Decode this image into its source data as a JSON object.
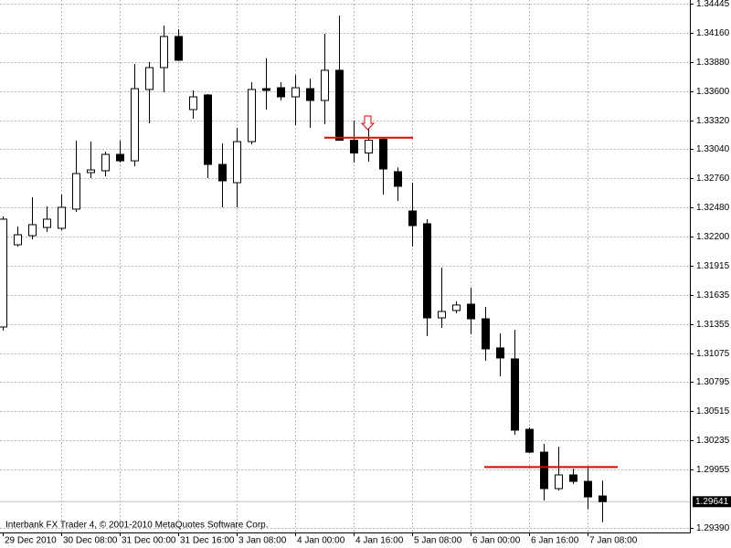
{
  "chart_data": {
    "type": "candlestick",
    "categories": [
      "29 Dec 2010",
      null,
      null,
      null,
      "30 Dec 08:00",
      null,
      null,
      null,
      "31 Dec 00:00",
      null,
      null,
      null,
      "31 Dec 16:00",
      null,
      null,
      null,
      "3 Jan 08:00",
      null,
      null,
      null,
      "4 Jan 00:00",
      null,
      null,
      null,
      "4 Jan 16:00",
      null,
      null,
      null,
      "5 Jan 08:00",
      null,
      null,
      null,
      "6 Jan 00:00",
      null,
      null,
      null,
      "6 Jan 16:00",
      null,
      null,
      null,
      "7 Jan 08:00",
      null
    ],
    "open": [
      1.31326,
      1.32119,
      1.32207,
      1.32286,
      1.32278,
      1.32463,
      1.32815,
      1.32833,
      1.32991,
      1.32929,
      1.33617,
      1.33828,
      1.34128,
      1.33423,
      1.33564,
      1.32894,
      1.32718,
      1.33114,
      1.33625,
      1.33634,
      1.33546,
      1.33625,
      1.33511,
      1.33802,
      1.33127,
      1.33004,
      1.33136,
      1.32824,
      1.32445,
      1.32322,
      1.31414,
      1.31485,
      1.31546,
      1.31405,
      1.31124,
      1.31018,
      1.30339,
      1.30119,
      1.29767,
      1.29899,
      1.29837,
      1.29696
    ],
    "high": [
      1.32392,
      1.32295,
      1.32577,
      1.32489,
      1.32604,
      1.33123,
      1.33114,
      1.33018,
      1.33123,
      1.33863,
      1.33881,
      1.34233,
      1.34198,
      1.33608,
      1.33573,
      1.33097,
      1.33247,
      1.33687,
      1.33919,
      1.33687,
      1.33758,
      1.33722,
      1.34154,
      1.3433,
      1.33317,
      1.33247,
      1.33152,
      1.32865,
      1.32718,
      1.32366,
      1.31899,
      1.31573,
      1.31705,
      1.3152,
      1.31264,
      1.313,
      1.30357,
      1.30198,
      1.30172,
      1.2996,
      1.29969,
      1.29845
    ],
    "low": [
      1.31291,
      1.32101,
      1.32172,
      1.32242,
      1.3226,
      1.32436,
      1.32762,
      1.3278,
      1.32912,
      1.32877,
      1.33291,
      1.3359,
      1.3389,
      1.33335,
      1.32762,
      1.3248,
      1.3248,
      1.33088,
      1.33423,
      1.33511,
      1.33273,
      1.33247,
      1.33282,
      1.33123,
      1.32912,
      1.32921,
      1.32604,
      1.32541,
      1.32101,
      1.31238,
      1.31317,
      1.31458,
      1.31256,
      1.31,
      1.3085,
      1.30286,
      1.3011,
      1.29652,
      1.29749,
      1.29811,
      1.29568,
      1.29444
    ],
    "close": [
      1.32366,
      1.32216,
      1.32313,
      1.32366,
      1.3248,
      1.32806,
      1.32841,
      1.32991,
      1.32929,
      1.33625,
      1.33828,
      1.34128,
      1.33899,
      1.33546,
      1.32894,
      1.32736,
      1.33114,
      1.33617,
      1.33608,
      1.33546,
      1.33634,
      1.33511,
      1.33802,
      1.33127,
      1.33004,
      1.33127,
      1.3285,
      1.32683,
      1.32304,
      1.31414,
      1.31476,
      1.31538,
      1.31405,
      1.31115,
      1.31027,
      1.30331,
      1.30119,
      1.29767,
      1.29899,
      1.29837,
      1.29687,
      1.29641
    ],
    "bull_color": "#ffffff",
    "bear_color": "#000000",
    "ylim": [
      1.29344,
      1.3448
    ],
    "yticks": [
      1.34445,
      {
        "value": 1.3416,
        "label": "1.34160"
      },
      {
        "value": 1.3388,
        "label": "1.33880"
      },
      {
        "value": 1.336,
        "label": "1.33600"
      },
      {
        "value": 1.3332,
        "label": "1.33320"
      },
      {
        "value": 1.3304,
        "label": "1.33040"
      },
      {
        "value": 1.3276,
        "label": "1.32760"
      },
      {
        "value": 1.3248,
        "label": "1.32480"
      },
      {
        "value": 1.322,
        "label": "1.32200"
      },
      1.31915,
      1.31635,
      1.31355,
      1.31075,
      1.30795,
      1.30515,
      1.30235,
      1.29955,
      {
        "value": 1.2939,
        "label": "1.29390"
      }
    ],
    "grid": true,
    "hlines": [
      {
        "value": 1.33152,
        "color": "#e00000"
      },
      {
        "value": 1.29975,
        "color": "#e00000"
      }
    ],
    "last_price": 1.29641,
    "copyright": "Interbank FX Trader 4, © 2001-2010 MetaQuotes Software Corp."
  }
}
